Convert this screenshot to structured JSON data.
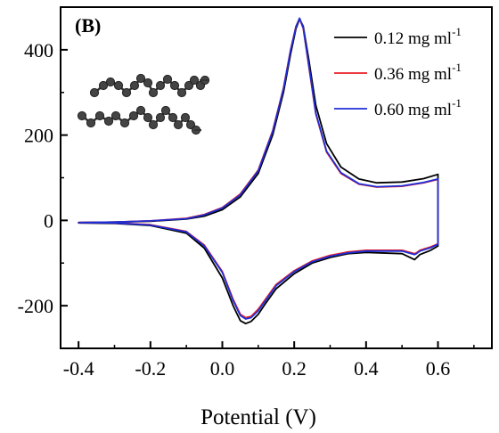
{
  "chart_data": {
    "type": "line",
    "panel_label": "(B)",
    "xlabel": "Potential (V)",
    "ylabel": "",
    "xlim": [
      -0.45,
      0.75
    ],
    "ylim": [
      -300,
      500
    ],
    "x_ticks": [
      -0.4,
      -0.2,
      0.0,
      0.2,
      0.4,
      0.6
    ],
    "x_tick_labels": [
      "-0.4",
      "-0.2",
      "0.0",
      "0.2",
      "0.4",
      "0.6"
    ],
    "y_ticks": [
      -200,
      0,
      200,
      400
    ],
    "y_tick_labels": [
      "-200",
      "0",
      "200",
      "400"
    ],
    "grid": false,
    "legend_position": "top-right",
    "series": [
      {
        "name": "0.12 mg ml",
        "unit_exponent": "-1",
        "color": "#000000",
        "x": [
          -0.4,
          -0.3,
          -0.2,
          -0.1,
          -0.05,
          0.0,
          0.05,
          0.1,
          0.14,
          0.17,
          0.19,
          0.205,
          0.215,
          0.225,
          0.24,
          0.26,
          0.29,
          0.33,
          0.38,
          0.43,
          0.5,
          0.56,
          0.6,
          0.6,
          0.58,
          0.55,
          0.54,
          0.535,
          0.5,
          0.4,
          0.35,
          0.3,
          0.25,
          0.2,
          0.15,
          0.12,
          0.1,
          0.08,
          0.065,
          0.05,
          0.03,
          0.0,
          -0.05,
          -0.1,
          -0.2,
          -0.3,
          -0.4
        ],
        "y": [
          -5,
          -4,
          -2,
          3,
          10,
          25,
          55,
          110,
          200,
          300,
          390,
          450,
          472,
          455,
          380,
          270,
          180,
          125,
          97,
          88,
          90,
          98,
          108,
          -60,
          -70,
          -80,
          -88,
          -92,
          -78,
          -75,
          -78,
          -87,
          -100,
          -125,
          -160,
          -195,
          -220,
          -237,
          -242,
          -235,
          -200,
          -135,
          -65,
          -30,
          -12,
          -7,
          -6
        ]
      },
      {
        "name": "0.36 mg ml",
        "unit_exponent": "-1",
        "color": "#e8202a",
        "x": [
          -0.4,
          -0.3,
          -0.2,
          -0.1,
          -0.05,
          0.0,
          0.05,
          0.1,
          0.14,
          0.17,
          0.19,
          0.205,
          0.215,
          0.225,
          0.24,
          0.26,
          0.29,
          0.33,
          0.38,
          0.43,
          0.5,
          0.56,
          0.6,
          0.6,
          0.58,
          0.55,
          0.54,
          0.535,
          0.5,
          0.4,
          0.35,
          0.3,
          0.25,
          0.2,
          0.15,
          0.12,
          0.1,
          0.08,
          0.065,
          0.05,
          0.03,
          0.0,
          -0.05,
          -0.1,
          -0.2,
          -0.3,
          -0.4
        ],
        "y": [
          -5,
          -4,
          -1,
          5,
          14,
          30,
          62,
          118,
          210,
          310,
          400,
          455,
          473,
          450,
          365,
          250,
          160,
          110,
          85,
          78,
          80,
          88,
          96,
          -55,
          -62,
          -70,
          -76,
          -78,
          -70,
          -70,
          -74,
          -82,
          -95,
          -118,
          -150,
          -185,
          -208,
          -225,
          -228,
          -220,
          -185,
          -120,
          -58,
          -26,
          -10,
          -6,
          -5
        ]
      },
      {
        "name": "0.60 mg ml",
        "unit_exponent": "-1",
        "color": "#1f2ed6",
        "x": [
          -0.4,
          -0.3,
          -0.2,
          -0.1,
          -0.05,
          0.0,
          0.05,
          0.1,
          0.14,
          0.17,
          0.19,
          0.205,
          0.215,
          0.225,
          0.24,
          0.26,
          0.29,
          0.33,
          0.38,
          0.43,
          0.5,
          0.56,
          0.6,
          0.6,
          0.58,
          0.55,
          0.54,
          0.535,
          0.5,
          0.4,
          0.35,
          0.3,
          0.25,
          0.2,
          0.15,
          0.12,
          0.1,
          0.08,
          0.065,
          0.05,
          0.03,
          0.0,
          -0.05,
          -0.1,
          -0.2,
          -0.3,
          -0.4
        ],
        "y": [
          -5,
          -4,
          -1,
          4,
          13,
          29,
          60,
          116,
          208,
          308,
          398,
          454,
          474,
          452,
          368,
          252,
          162,
          112,
          86,
          79,
          81,
          89,
          97,
          -56,
          -64,
          -72,
          -78,
          -80,
          -72,
          -72,
          -76,
          -84,
          -97,
          -120,
          -153,
          -188,
          -212,
          -228,
          -231,
          -223,
          -188,
          -122,
          -60,
          -27,
          -11,
          -6,
          -5
        ]
      }
    ]
  }
}
